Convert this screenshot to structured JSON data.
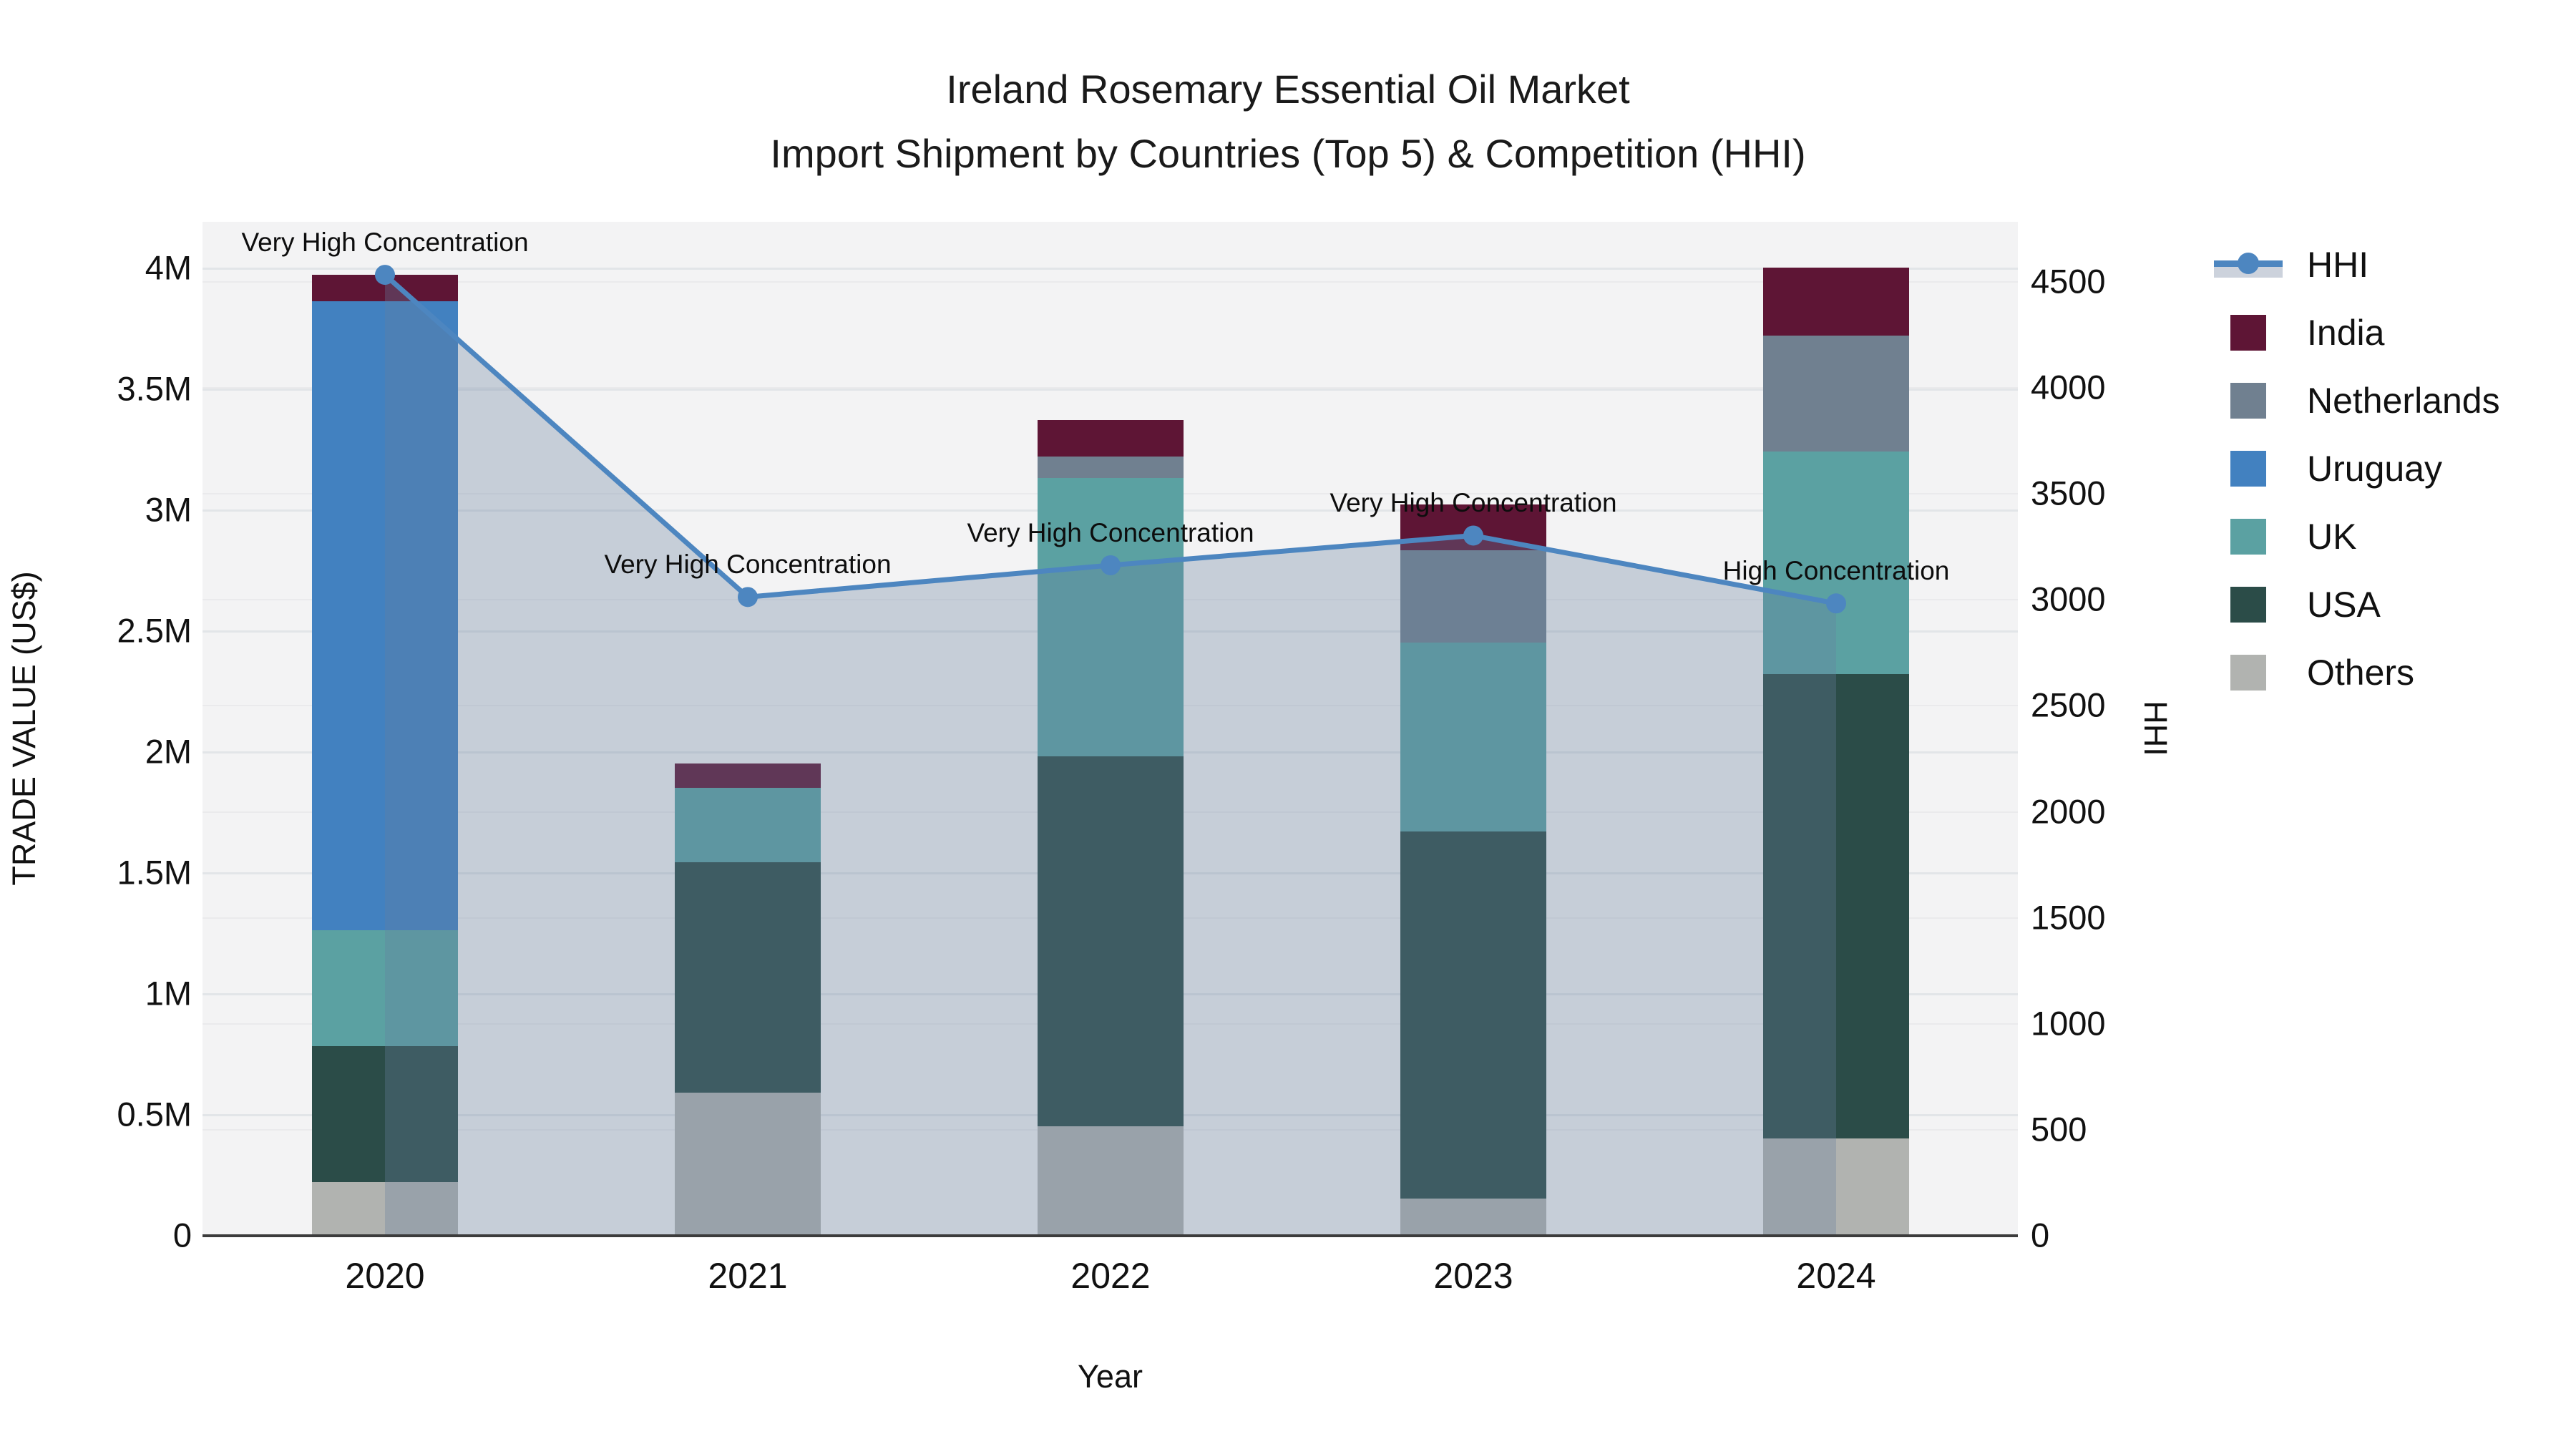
{
  "page": {
    "background": "#ffffff"
  },
  "chart_data": {
    "type": "bar",
    "variant": "stacked-bar-with-line-overlay",
    "title": "Ireland Rosemary Essential Oil Market",
    "subtitle": "Import Shipment by Countries (Top 5) & Competition (HHI)",
    "xlabel": "Year",
    "ylabel": "TRADE VALUE (US$)",
    "y2label": "HHI",
    "categories": [
      "2020",
      "2021",
      "2022",
      "2023",
      "2024"
    ],
    "values_unit": "million US$",
    "series": [
      {
        "name": "Others",
        "color": "#b1b3b0",
        "values": [
          0.22,
          0.59,
          0.45,
          0.15,
          0.4
        ]
      },
      {
        "name": "USA",
        "color": "#2b4c48",
        "values": [
          0.56,
          0.95,
          1.53,
          1.52,
          1.92
        ]
      },
      {
        "name": "UK",
        "color": "#5ba1a2",
        "values": [
          0.48,
          0.31,
          1.15,
          0.78,
          0.92
        ]
      },
      {
        "name": "Uruguay",
        "color": "#4281c0",
        "values": [
          2.6,
          0,
          0,
          0,
          0
        ]
      },
      {
        "name": "Netherlands",
        "color": "#708090",
        "values": [
          0,
          0,
          0.09,
          0.38,
          0.48
        ]
      },
      {
        "name": "India",
        "color": "#5e1535",
        "values": [
          0.11,
          0.1,
          0.15,
          0.19,
          0.28
        ]
      }
    ],
    "line_series": {
      "name": "HHI",
      "color": "#4d86c0",
      "fill_color": "rgba(104,128,159,0.32)",
      "values": [
        4530,
        3010,
        3160,
        3300,
        2980
      ]
    },
    "annotations": [
      "Very High Concentration",
      "Very High Concentration",
      "Very High Concentration",
      "Very High Concentration",
      "High Concentration"
    ],
    "y_axis": {
      "range": [
        0,
        4.19
      ],
      "ticks": [
        {
          "v": 0,
          "label": "0"
        },
        {
          "v": 0.5,
          "label": "0.5M"
        },
        {
          "v": 1,
          "label": "1M"
        },
        {
          "v": 1.5,
          "label": "1.5M"
        },
        {
          "v": 2,
          "label": "2M"
        },
        {
          "v": 2.5,
          "label": "2.5M"
        },
        {
          "v": 3,
          "label": "3M"
        },
        {
          "v": 3.5,
          "label": "3.5M"
        },
        {
          "v": 4,
          "label": "4M"
        }
      ]
    },
    "y2_axis": {
      "range": [
        0,
        4780
      ],
      "ticks": [
        {
          "v": 0,
          "label": "0"
        },
        {
          "v": 500,
          "label": "500"
        },
        {
          "v": 1000,
          "label": "1000"
        },
        {
          "v": 1500,
          "label": "1500"
        },
        {
          "v": 2000,
          "label": "2000"
        },
        {
          "v": 2500,
          "label": "2500"
        },
        {
          "v": 3000,
          "label": "3000"
        },
        {
          "v": 3500,
          "label": "3500"
        },
        {
          "v": 4000,
          "label": "4000"
        },
        {
          "v": 4500,
          "label": "4500"
        }
      ]
    },
    "legend": {
      "position": "right",
      "items": [
        {
          "label": "HHI",
          "type": "line",
          "color": "#4d86c0"
        },
        {
          "label": "India",
          "type": "swatch",
          "color": "#5e1535"
        },
        {
          "label": "Netherlands",
          "type": "swatch",
          "color": "#708090"
        },
        {
          "label": "Uruguay",
          "type": "swatch",
          "color": "#4281c0"
        },
        {
          "label": "UK",
          "type": "swatch",
          "color": "#5ba1a2"
        },
        {
          "label": "USA",
          "type": "swatch",
          "color": "#2b4c48"
        },
        {
          "label": "Others",
          "type": "swatch",
          "color": "#b1b3b0"
        }
      ]
    },
    "layout_hints": {
      "plot_bg": "#f3f3f4",
      "grid": "on",
      "stack_order": "bottom-to-top"
    }
  }
}
